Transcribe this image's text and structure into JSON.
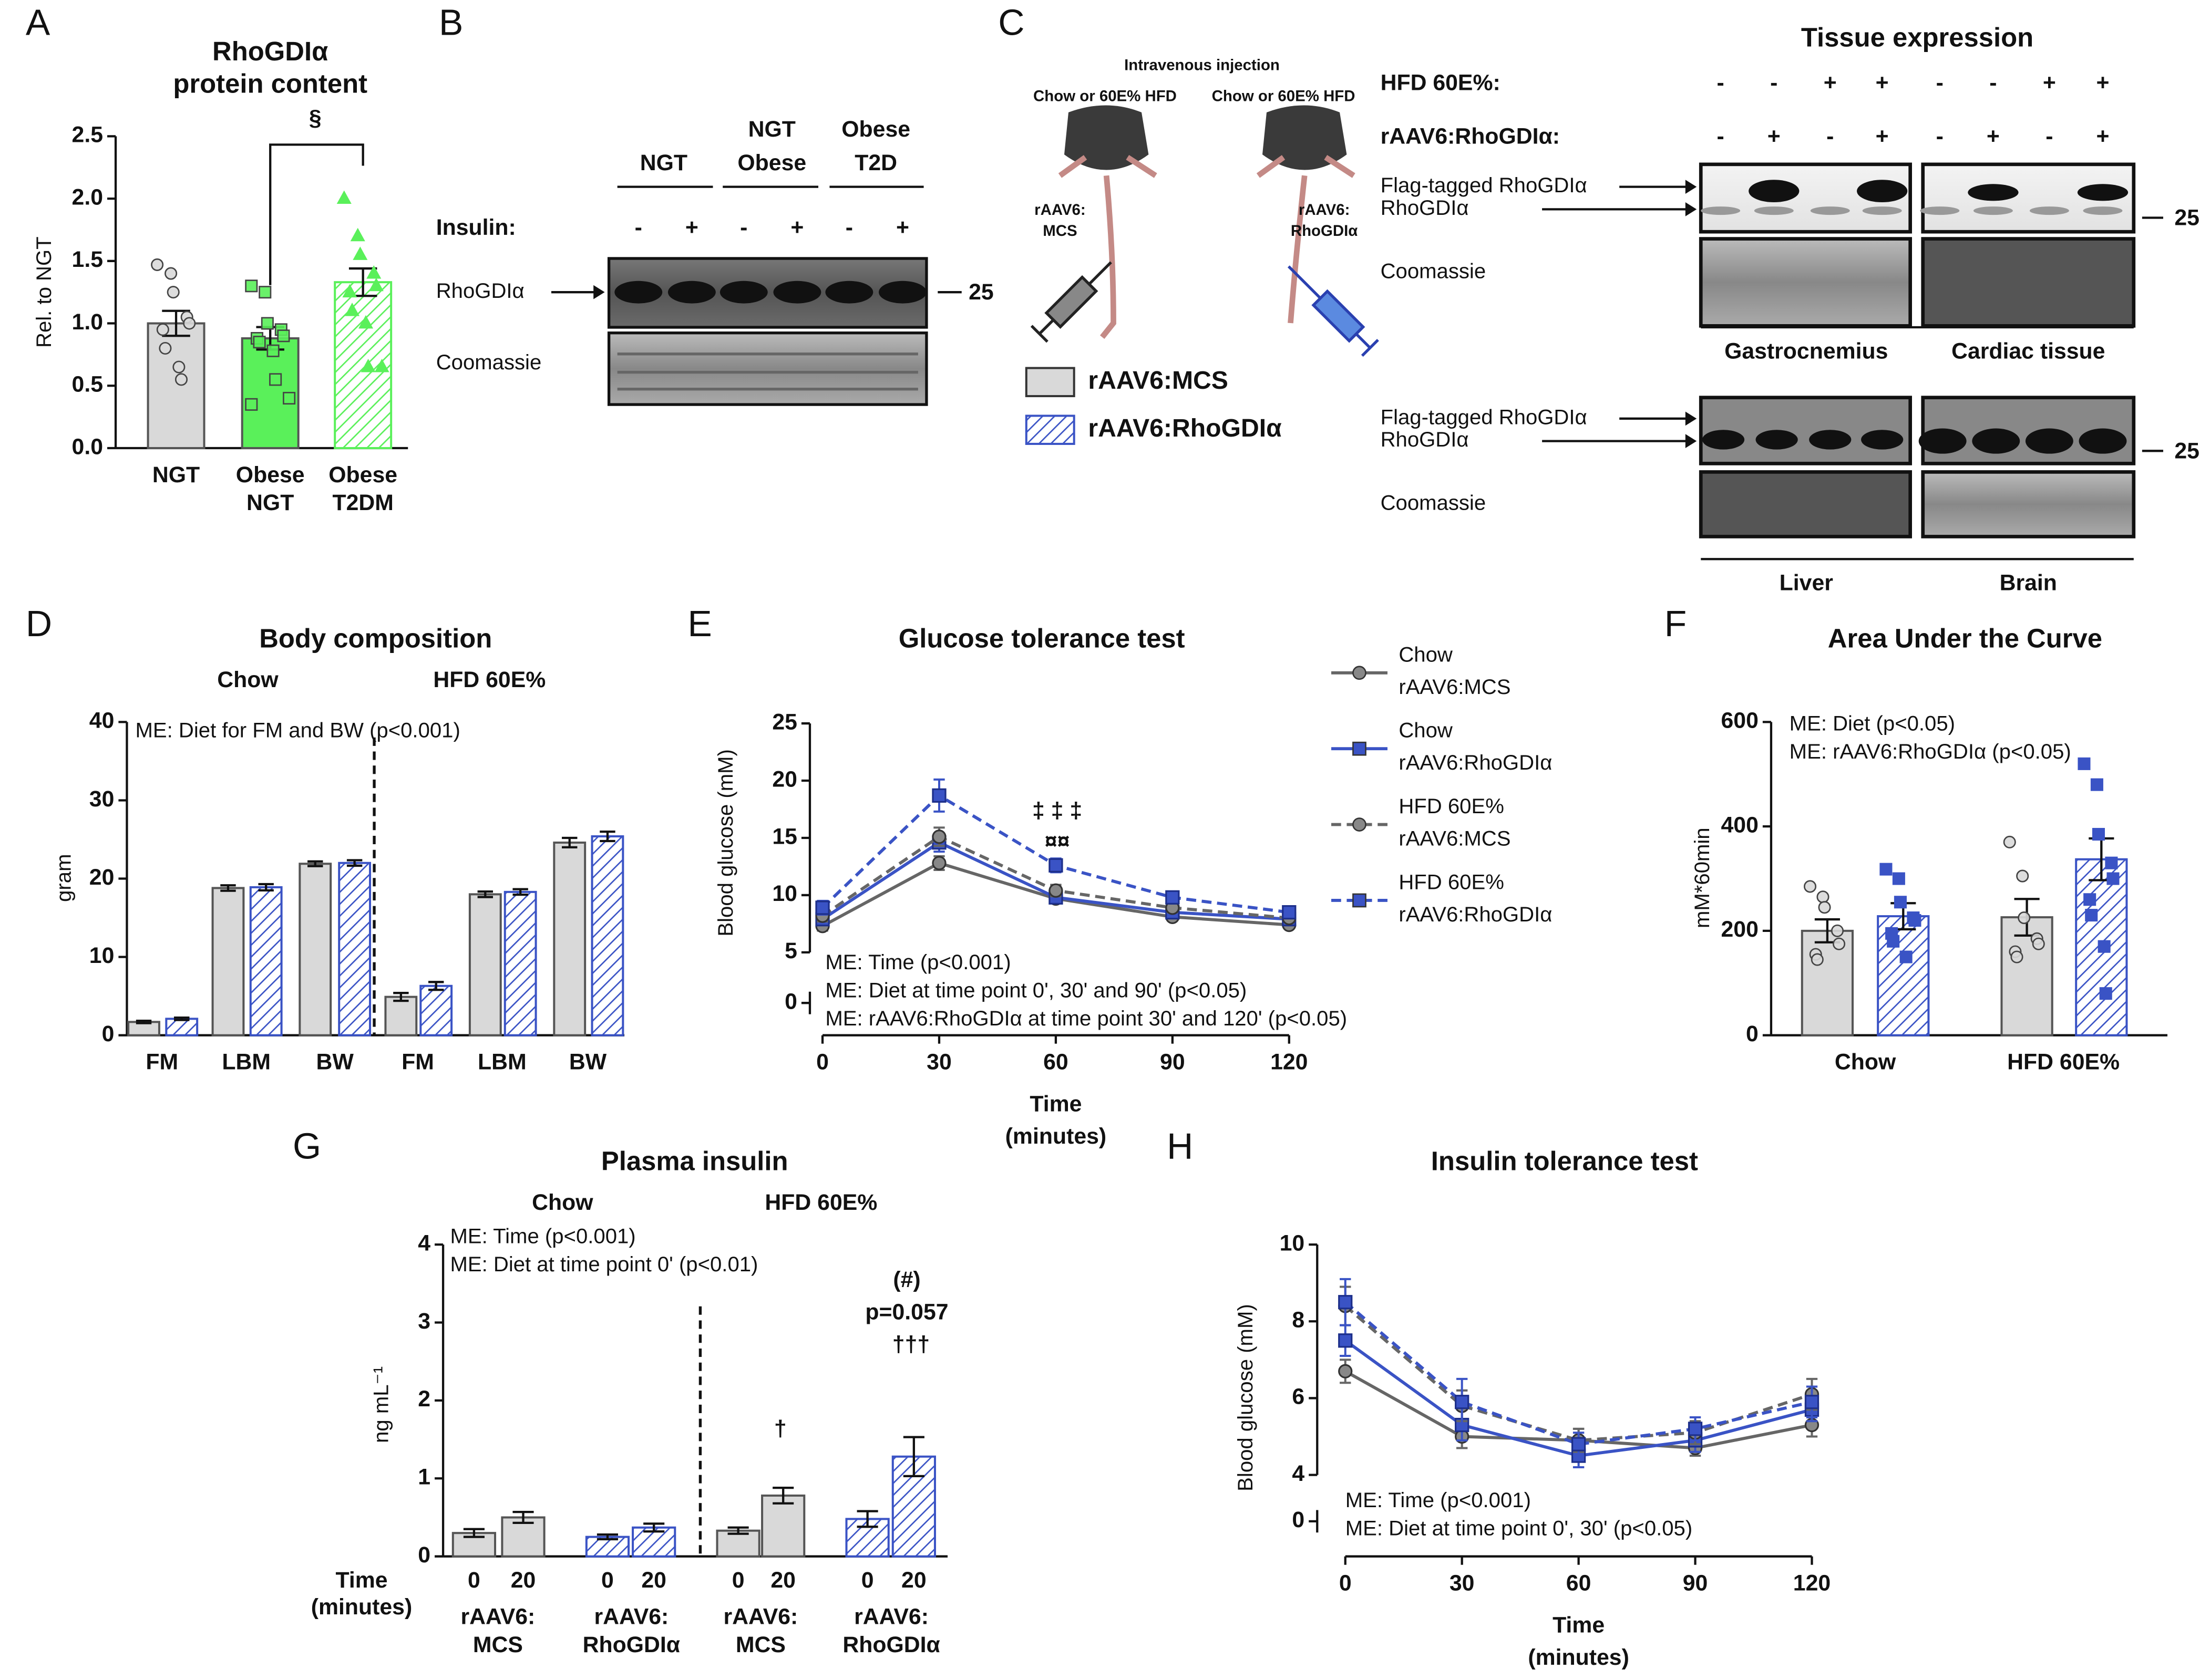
{
  "figure": {
    "panel_labels": [
      "A",
      "B",
      "C",
      "D",
      "E",
      "F",
      "G",
      "H"
    ],
    "panel_b": {
      "groups": [
        [
          "NGT"
        ],
        [
          "NGT",
          "Obese"
        ],
        [
          "Obese",
          "T2D"
        ]
      ],
      "insulin_label": "Insulin:",
      "insulin": [
        "-",
        "+",
        "-",
        "+",
        "-",
        "+"
      ],
      "band_label": "RhoGDIα",
      "marker": "25",
      "loading_label": "Coomassie"
    },
    "panel_c": {
      "injection": "Intravenous injection",
      "diet": [
        "Chow or 60E% HFD",
        "Chow or 60E% HFD"
      ],
      "mouse_labels": [
        [
          "rAAV6:",
          "MCS"
        ],
        [
          "rAAV6:",
          "RhoGDIα"
        ]
      ],
      "legend": [
        "rAAV6:MCS",
        "rAAV6:RhoGDIα"
      ],
      "tissue_title": "Tissue expression",
      "hfd_label": "HFD 60E%:",
      "hfd": [
        "-",
        "-",
        "+",
        "+",
        "-",
        "-",
        "+",
        "+"
      ],
      "aav_label": "rAAV6:RhoGDIα:",
      "aav": [
        "-",
        "+",
        "-",
        "+",
        "-",
        "+",
        "-",
        "+"
      ],
      "bands": [
        "Flag-tagged RhoGDIα",
        "RhoGDIα"
      ],
      "marker": "25",
      "loading_label": "Coomassie",
      "tissues": [
        "Gastrocnemius",
        "Cardiac tissue",
        "Liver",
        "Brain"
      ]
    }
  },
  "chart_data": [
    {
      "type": "bar",
      "title": [
        "RhoGDIα",
        "protein content"
      ],
      "ylabel": "Rel. to NGT",
      "categories": [
        [
          "NGT"
        ],
        [
          "Obese",
          "NGT"
        ],
        [
          "Obese",
          "T2DM"
        ]
      ],
      "series": [
        {
          "values": [
            1.0,
            0.88,
            1.33
          ],
          "errors": [
            0.1,
            0.09,
            0.11
          ],
          "colors": [
            "#d9d9d9",
            "#5af05a",
            "#5af05a"
          ],
          "hatched": [
            false,
            false,
            true
          ],
          "markers": [
            "circle",
            "square",
            "triangle"
          ],
          "points": [
            [
              1.47,
              1.4,
              1.25,
              1.05,
              1.0,
              0.95,
              0.8,
              0.65,
              0.55
            ],
            [
              1.3,
              1.25,
              1.0,
              0.95,
              0.9,
              0.88,
              0.85,
              0.78,
              0.55,
              0.4,
              0.35
            ],
            [
              2.0,
              1.7,
              1.55,
              1.4,
              1.3,
              1.25,
              1.1,
              1.0,
              0.65,
              0.65
            ]
          ]
        }
      ],
      "ylim": [
        0,
        2.5
      ],
      "yticks": [
        {
          "value": 0,
          "label": "0.0"
        },
        {
          "value": 0.5,
          "label": "0.5"
        },
        {
          "value": 1,
          "label": "1.0"
        },
        {
          "value": 1.5,
          "label": "1.5"
        },
        {
          "value": 2,
          "label": "2.0"
        },
        {
          "value": 2.5,
          "label": "2.5"
        }
      ],
      "annotations": [
        "§"
      ]
    },
    {
      "type": "bar",
      "title": "Body composition",
      "groups": [
        "Chow",
        "HFD 60E%"
      ],
      "categories": [
        "FM",
        "LBM",
        "BW",
        "FM",
        "LBM",
        "BW"
      ],
      "ylabel": "gram",
      "notes": [
        "ME: Diet for FM and BW (p<0.001)"
      ],
      "ylim": [
        0,
        40
      ],
      "yticks": [
        0,
        10,
        20,
        30,
        40
      ],
      "series": [
        {
          "color": "#d9d9d9",
          "values": [
            1.7,
            18.8,
            21.9,
            4.9,
            18.0,
            24.6
          ],
          "errors": [
            0.15,
            0.35,
            0.3,
            0.5,
            0.35,
            0.6
          ]
        },
        {
          "color": "#3a53c5",
          "hatched": true,
          "values": [
            2.1,
            18.9,
            22.0,
            6.3,
            18.3,
            25.4
          ],
          "errors": [
            0.15,
            0.4,
            0.35,
            0.5,
            0.35,
            0.6
          ]
        }
      ]
    },
    {
      "type": "line",
      "title": "Glucose tolerance test",
      "x": [
        0,
        30,
        60,
        90,
        120
      ],
      "xlim": [
        0,
        120
      ],
      "xticks": [
        0,
        30,
        60,
        90,
        120
      ],
      "ylim": [
        5,
        25
      ],
      "yticks": [
        5,
        10,
        15,
        20,
        25
      ],
      "ybreak_tick": 0,
      "ylabel": "Blood glucose (mM)",
      "xlabel": [
        "Time",
        "(minutes)"
      ],
      "notes": [
        "ME: Time (p<0.001)",
        "ME: Diet at time point 0', 30' and 90' (p<0.05)",
        "ME: rAAV6:RhoGDIα at time point 30' and 120' (p<0.05)"
      ],
      "annotations": [
        "‡ ‡ ‡",
        "¤¤"
      ],
      "series": [
        {
          "name": [
            "Chow",
            "rAAV6:MCS"
          ],
          "color": "#666666",
          "dashed": false,
          "marker": "circle",
          "values": [
            7.3,
            12.8,
            9.7,
            8.1,
            7.4
          ],
          "errors": [
            0.4,
            0.6,
            0.4,
            0.3,
            0.3
          ]
        },
        {
          "name": [
            "Chow",
            "rAAV6:RhoGDIα"
          ],
          "color": "#3a53c5",
          "dashed": false,
          "marker": "square",
          "values": [
            7.9,
            14.6,
            9.8,
            8.5,
            7.9
          ],
          "errors": [
            0.5,
            0.8,
            0.4,
            0.4,
            0.3
          ]
        },
        {
          "name": [
            "HFD 60E%",
            "rAAV6:MCS"
          ],
          "color": "#666666",
          "dashed": true,
          "marker": "circle",
          "values": [
            8.2,
            15.1,
            10.4,
            8.9,
            8.0
          ],
          "errors": [
            0.5,
            0.8,
            0.5,
            0.4,
            0.3
          ]
        },
        {
          "name": [
            "HFD 60E%",
            "rAAV6:RhoGDIα"
          ],
          "color": "#3a53c5",
          "dashed": true,
          "marker": "square",
          "values": [
            8.9,
            18.7,
            12.6,
            9.8,
            8.5
          ],
          "errors": [
            0.6,
            1.4,
            0.6,
            0.5,
            0.4
          ]
        }
      ]
    },
    {
      "type": "bar",
      "title": "Area Under the Curve",
      "categories": [
        "Chow",
        "HFD 60E%"
      ],
      "ylabel": "mM*60min",
      "notes": [
        "ME: Diet (p<0.05)",
        "ME: rAAV6:RhoGDIα (p<0.05)"
      ],
      "ylim": [
        0,
        600
      ],
      "yticks": [
        0,
        200,
        400,
        600
      ],
      "series": [
        {
          "color": "#d9d9d9",
          "marker": "circle",
          "values": [
            200,
            226
          ],
          "errors": [
            22,
            35
          ],
          "points": [
            [
              285,
              265,
              245,
              200,
              175,
              155,
              145
            ],
            [
              370,
              305,
              225,
              185,
              175,
              160,
              150
            ]
          ]
        },
        {
          "color": "#3a53c5",
          "hatched": true,
          "marker": "square",
          "values": [
            228,
            337
          ],
          "errors": [
            25,
            40
          ],
          "points": [
            [
              318,
              300,
              255,
              225,
              220,
              195,
              180,
              150
            ],
            [
              520,
              480,
              385,
              330,
              300,
              260,
              230,
              170,
              80
            ]
          ]
        }
      ]
    },
    {
      "type": "bar",
      "title": "Plasma insulin",
      "groups": [
        "Chow",
        "HFD 60E%"
      ],
      "categories": [
        [
          "rAAV6:",
          "MCS"
        ],
        [
          "rAAV6:",
          "RhoGDIα"
        ],
        [
          "rAAV6:",
          "MCS"
        ],
        [
          "rAAV6:",
          "RhoGDIα"
        ]
      ],
      "xsub": [
        0,
        20
      ],
      "xsub_label": [
        "Time",
        "(minutes)"
      ],
      "ylabel": "ng mL⁻¹",
      "ylim": [
        0,
        4
      ],
      "yticks": [
        0,
        1,
        2,
        3,
        4
      ],
      "notes": [
        "ME: Time (p<0.001)",
        "ME: Diet at time point 0' (p<0.01)"
      ],
      "annotations": [
        "(#)",
        "p=0.057",
        "†††",
        "†"
      ],
      "series": [
        {
          "colors": [
            "#d9d9d9",
            "#3a53c5",
            "#d9d9d9",
            "#3a53c5"
          ],
          "hatched": [
            false,
            true,
            false,
            true
          ],
          "values": [
            0.3,
            0.25,
            0.33,
            0.48
          ],
          "errors": [
            0.05,
            0.03,
            0.04,
            0.1
          ]
        },
        {
          "colors": [
            "#d9d9d9",
            "#3a53c5",
            "#d9d9d9",
            "#3a53c5"
          ],
          "hatched": [
            false,
            true,
            false,
            true
          ],
          "values": [
            0.5,
            0.37,
            0.78,
            1.28
          ],
          "errors": [
            0.07,
            0.05,
            0.1,
            0.25
          ]
        }
      ]
    },
    {
      "type": "line",
      "title": "Insulin tolerance test",
      "x": [
        0,
        30,
        60,
        90,
        120
      ],
      "xlim": [
        0,
        120
      ],
      "xticks": [
        0,
        30,
        60,
        90,
        120
      ],
      "ylim": [
        4,
        10
      ],
      "yticks": [
        4,
        6,
        8,
        10
      ],
      "ybreak_tick": 0,
      "ylabel": "Blood glucose (mM)",
      "xlabel": [
        "Time",
        "(minutes)"
      ],
      "notes": [
        "ME: Time (p<0.001)",
        "ME: Diet at time point 0', 30' (p<0.05)"
      ],
      "series": [
        {
          "color": "#666666",
          "dashed": false,
          "marker": "circle",
          "values": [
            6.7,
            5.0,
            4.9,
            4.7,
            5.3
          ],
          "errors": [
            0.3,
            0.3,
            0.3,
            0.2,
            0.3
          ]
        },
        {
          "color": "#3a53c5",
          "dashed": false,
          "marker": "square",
          "values": [
            7.5,
            5.3,
            4.5,
            4.9,
            5.7
          ],
          "errors": [
            0.4,
            0.4,
            0.3,
            0.3,
            0.3
          ]
        },
        {
          "color": "#666666",
          "dashed": true,
          "marker": "circle",
          "values": [
            8.4,
            5.8,
            4.9,
            5.1,
            6.1
          ],
          "errors": [
            0.5,
            0.4,
            0.3,
            0.3,
            0.4
          ]
        },
        {
          "color": "#3a53c5",
          "dashed": true,
          "marker": "square",
          "values": [
            8.5,
            5.9,
            4.8,
            5.2,
            5.9
          ],
          "errors": [
            0.6,
            0.6,
            0.3,
            0.3,
            0.4
          ]
        }
      ]
    }
  ]
}
